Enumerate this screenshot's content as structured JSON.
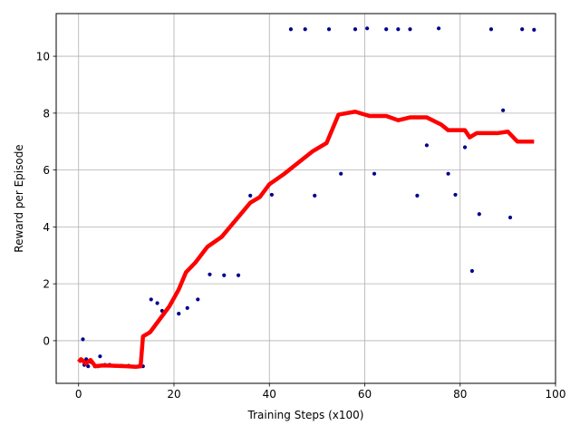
{
  "chart_data": {
    "type": "scatter",
    "title": "",
    "xlabel": "Training Steps (x100)",
    "ylabel": "Reward per Episode",
    "xlim": [
      -4.7,
      100
    ],
    "ylim": [
      -1.5,
      11.5
    ],
    "xticks": [
      0,
      20,
      40,
      60,
      80,
      100
    ],
    "yticks": [
      0,
      2,
      4,
      6,
      8,
      10
    ],
    "grid": true,
    "legend": "none",
    "series": [
      {
        "kind": "scatter",
        "color": "#00008b",
        "points": [
          [
            0.5,
            -0.7
          ],
          [
            0.9,
            0.05
          ],
          [
            1.2,
            -0.85
          ],
          [
            1.6,
            -0.65
          ],
          [
            2.0,
            -0.9
          ],
          [
            2.6,
            -0.75
          ],
          [
            3.4,
            -0.9
          ],
          [
            4.1,
            -0.9
          ],
          [
            4.5,
            -0.55
          ],
          [
            5.5,
            -0.85
          ],
          [
            6.5,
            -0.85
          ],
          [
            7.5,
            -0.88
          ],
          [
            9.0,
            -0.88
          ],
          [
            10.5,
            -0.88
          ],
          [
            12.5,
            -0.9
          ],
          [
            13.5,
            -0.9
          ],
          [
            15.2,
            1.45
          ],
          [
            16.5,
            1.32
          ],
          [
            17.5,
            1.05
          ],
          [
            21.0,
            0.95
          ],
          [
            22.8,
            1.15
          ],
          [
            25.0,
            1.45
          ],
          [
            27.5,
            2.33
          ],
          [
            30.5,
            2.3
          ],
          [
            33.5,
            2.3
          ],
          [
            36.0,
            5.1
          ],
          [
            40.5,
            5.13
          ],
          [
            44.5,
            10.95
          ],
          [
            47.5,
            10.95
          ],
          [
            49.5,
            5.1
          ],
          [
            52.5,
            10.95
          ],
          [
            55.0,
            5.87
          ],
          [
            58.0,
            10.95
          ],
          [
            60.5,
            10.98
          ],
          [
            62.0,
            5.87
          ],
          [
            64.5,
            10.95
          ],
          [
            67.0,
            10.95
          ],
          [
            69.5,
            10.95
          ],
          [
            71.0,
            5.1
          ],
          [
            73.0,
            6.87
          ],
          [
            75.5,
            10.98
          ],
          [
            77.5,
            5.87
          ],
          [
            79.0,
            5.13
          ],
          [
            81.0,
            6.8
          ],
          [
            82.5,
            2.45
          ],
          [
            84.0,
            4.45
          ],
          [
            86.5,
            10.95
          ],
          [
            89.0,
            8.1
          ],
          [
            90.5,
            4.33
          ],
          [
            93.0,
            10.95
          ],
          [
            95.5,
            10.93
          ]
        ]
      },
      {
        "kind": "line",
        "color": "#ff0000",
        "points": [
          [
            0,
            -0.75
          ],
          [
            0.5,
            -0.65
          ],
          [
            1.5,
            -0.8
          ],
          [
            2.5,
            -0.68
          ],
          [
            3.5,
            -0.9
          ],
          [
            5,
            -0.87
          ],
          [
            7,
            -0.88
          ],
          [
            10,
            -0.9
          ],
          [
            12,
            -0.92
          ],
          [
            13,
            -0.9
          ],
          [
            13.5,
            0.15
          ],
          [
            15,
            0.3
          ],
          [
            17,
            0.75
          ],
          [
            19,
            1.2
          ],
          [
            21,
            1.8
          ],
          [
            22.5,
            2.4
          ],
          [
            24.5,
            2.75
          ],
          [
            27,
            3.3
          ],
          [
            30,
            3.65
          ],
          [
            33,
            4.25
          ],
          [
            36,
            4.85
          ],
          [
            38,
            5.05
          ],
          [
            40,
            5.5
          ],
          [
            43,
            5.85
          ],
          [
            46,
            6.25
          ],
          [
            49,
            6.65
          ],
          [
            52,
            6.95
          ],
          [
            54.5,
            7.95
          ],
          [
            58,
            8.05
          ],
          [
            61,
            7.9
          ],
          [
            64.5,
            7.9
          ],
          [
            67,
            7.75
          ],
          [
            69.5,
            7.85
          ],
          [
            73,
            7.85
          ],
          [
            76,
            7.6
          ],
          [
            77.5,
            7.4
          ],
          [
            81,
            7.4
          ],
          [
            82,
            7.15
          ],
          [
            83.5,
            7.3
          ],
          [
            88,
            7.3
          ],
          [
            90,
            7.35
          ],
          [
            92,
            7.0
          ],
          [
            95.5,
            7.0
          ]
        ]
      }
    ]
  }
}
